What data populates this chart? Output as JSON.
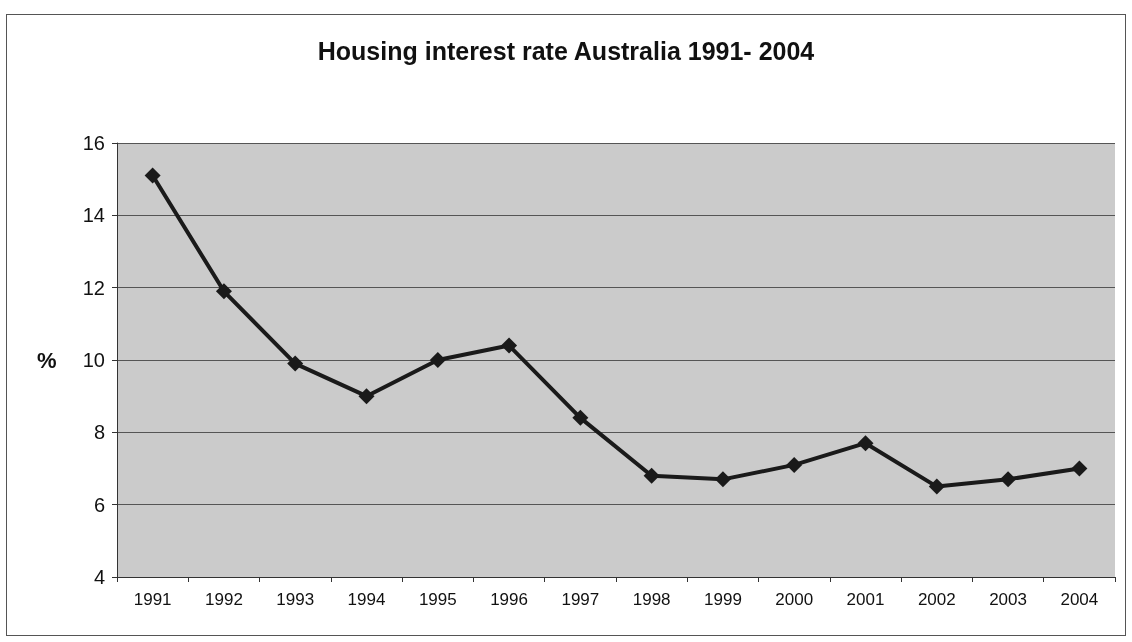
{
  "chart_data": {
    "type": "line",
    "title": "Housing interest rate Australia 1991- 2004",
    "ylabel": "%",
    "categories": [
      "1991",
      "1992",
      "1993",
      "1994",
      "1995",
      "1996",
      "1997",
      "1998",
      "1999",
      "2000",
      "2001",
      "2002",
      "2003",
      "2004"
    ],
    "series": [
      {
        "color": "#1a1a1a",
        "values": [
          15.1,
          11.9,
          9.9,
          9.0,
          10.0,
          10.4,
          8.4,
          6.8,
          6.7,
          7.1,
          7.7,
          6.5,
          6.7,
          7.0
        ]
      }
    ],
    "ylim": [
      4,
      16
    ],
    "yticks": [
      4,
      6,
      8,
      10,
      12,
      14,
      16
    ],
    "grid": "y",
    "marker": "diamond",
    "line_style": "solid"
  }
}
